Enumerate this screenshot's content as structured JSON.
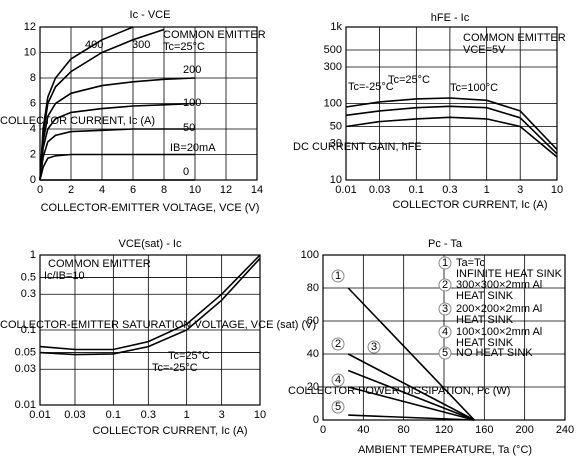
{
  "chart_data": [
    {
      "type": "line",
      "title": "Ic - VCE",
      "x_label": "COLLECTOR-EMITTER VOLTAGE, VCE (V)",
      "y_label": "COLLECTOR CURRENT, Ic (A)",
      "annotations": [
        "COMMON EMITTER",
        "Tc=25°C"
      ],
      "x": [
        0,
        0.2,
        0.5,
        1,
        2,
        4,
        6,
        8,
        10
      ],
      "series": [
        {
          "name": "400",
          "values": [
            0,
            4,
            6.5,
            8,
            9.5,
            11,
            12,
            null,
            null
          ]
        },
        {
          "name": "300",
          "values": [
            0,
            3.5,
            6,
            7.3,
            8.5,
            10,
            11,
            11.8,
            null
          ]
        },
        {
          "name": "200",
          "values": [
            0,
            3,
            5,
            6,
            6.8,
            7.4,
            7.7,
            7.9,
            8
          ]
        },
        {
          "name": "100",
          "values": [
            0,
            2.5,
            4,
            4.8,
            5.3,
            5.6,
            5.8,
            5.9,
            6
          ]
        },
        {
          "name": "50",
          "values": [
            0,
            1.8,
            3,
            3.5,
            3.8,
            3.9,
            4,
            4,
            4
          ]
        },
        {
          "name": "IB=20mA",
          "values": [
            0,
            1,
            1.7,
            1.9,
            2,
            2,
            2,
            2,
            2
          ]
        },
        {
          "name": "0",
          "values": [
            0,
            0,
            0,
            0,
            0,
            0,
            0,
            0,
            0
          ]
        }
      ],
      "color": "#000000",
      "xlim": [
        0,
        14
      ],
      "xticks": [
        0,
        2,
        4,
        6,
        8,
        10,
        12,
        14
      ],
      "ylim": [
        0,
        12
      ],
      "yticks": [
        0,
        2,
        4,
        6,
        8,
        10,
        12
      ],
      "grid": true
    },
    {
      "type": "line",
      "title": "hFE - Ic",
      "x_label": "COLLECTOR CURRENT, Ic (A)",
      "y_label": "DC CURRENT GAIN, hFE",
      "annotations": [
        "COMMON EMITTER",
        "VCE=5V"
      ],
      "x": [
        0.01,
        0.03,
        0.1,
        0.3,
        1,
        3,
        10
      ],
      "series": [
        {
          "name": "Tc=100°C",
          "values": [
            90,
            105,
            115,
            118,
            110,
            80,
            25
          ]
        },
        {
          "name": "Tc=25°C",
          "values": [
            70,
            80,
            88,
            92,
            88,
            65,
            22
          ]
        },
        {
          "name": "Tc=-25°C",
          "values": [
            50,
            58,
            63,
            66,
            63,
            50,
            20
          ]
        }
      ],
      "color": "#000000",
      "xlog": true,
      "ylog": true,
      "xlim": [
        0.01,
        10
      ],
      "xticks": [
        0.01,
        0.03,
        0.1,
        0.3,
        1,
        3,
        10
      ],
      "ylim": [
        10,
        1000
      ],
      "yticks": [
        10,
        30,
        50,
        100,
        300,
        500,
        {
          "value": 1000,
          "label": "1k"
        }
      ],
      "grid": true
    },
    {
      "type": "line",
      "title": "VCE(sat) - Ic",
      "x_label": "COLLECTOR CURRENT, Ic (A)",
      "y_label": "COLLECTOR-EMITTER SATURATION VOLTAGE, VCE (sat) (V)",
      "annotations": [
        "COMMON EMITTER",
        "Ic/IB=10"
      ],
      "x": [
        0.01,
        0.03,
        0.1,
        0.3,
        1,
        3,
        10
      ],
      "series": [
        {
          "name": "Tc=25°C",
          "values": [
            0.06,
            0.055,
            0.055,
            0.07,
            0.12,
            0.3,
            1
          ]
        },
        {
          "name": "Tc=-25°C",
          "values": [
            0.05,
            0.047,
            0.048,
            0.06,
            0.1,
            0.25,
            0.9
          ]
        }
      ],
      "color": "#000000",
      "xlog": true,
      "ylog": true,
      "xlim": [
        0.01,
        10
      ],
      "xticks": [
        0.01,
        0.03,
        0.1,
        0.3,
        1,
        3,
        10
      ],
      "ylim": [
        0.01,
        1
      ],
      "yticks": [
        0.01,
        0.03,
        0.05,
        0.1,
        0.3,
        0.5,
        1
      ],
      "grid": true
    },
    {
      "type": "line",
      "title": "Pc - Ta",
      "x_label": "AMBIENT TEMPERATURE, Ta (°C)",
      "y_label": "COLLECTOR POWER DISSIPATION, Pc (W)",
      "annotations": [
        "Ta=Tc",
        "INFINITE HEAT SINK",
        "300×300×2mm Al",
        "HEAT SINK",
        "200×200×2mm Al",
        "HEAT SINK",
        "100×100×2mm Al",
        "HEAT SINK",
        "NO HEAT SINK"
      ],
      "x": [
        25,
        150
      ],
      "series": [
        {
          "name": "1",
          "values": [
            80,
            0
          ]
        },
        {
          "name": "2",
          "values": [
            40,
            0
          ]
        },
        {
          "name": "3",
          "values": [
            30,
            0
          ]
        },
        {
          "name": "4",
          "values": [
            20,
            0
          ]
        },
        {
          "name": "5",
          "values": [
            3,
            0
          ]
        }
      ],
      "color": "#000000",
      "xlim": [
        0,
        240
      ],
      "xticks": [
        0,
        40,
        80,
        120,
        160,
        200,
        240
      ],
      "ylim": [
        0,
        100
      ],
      "yticks": [
        0,
        20,
        40,
        60,
        80,
        100
      ],
      "grid": true
    }
  ]
}
